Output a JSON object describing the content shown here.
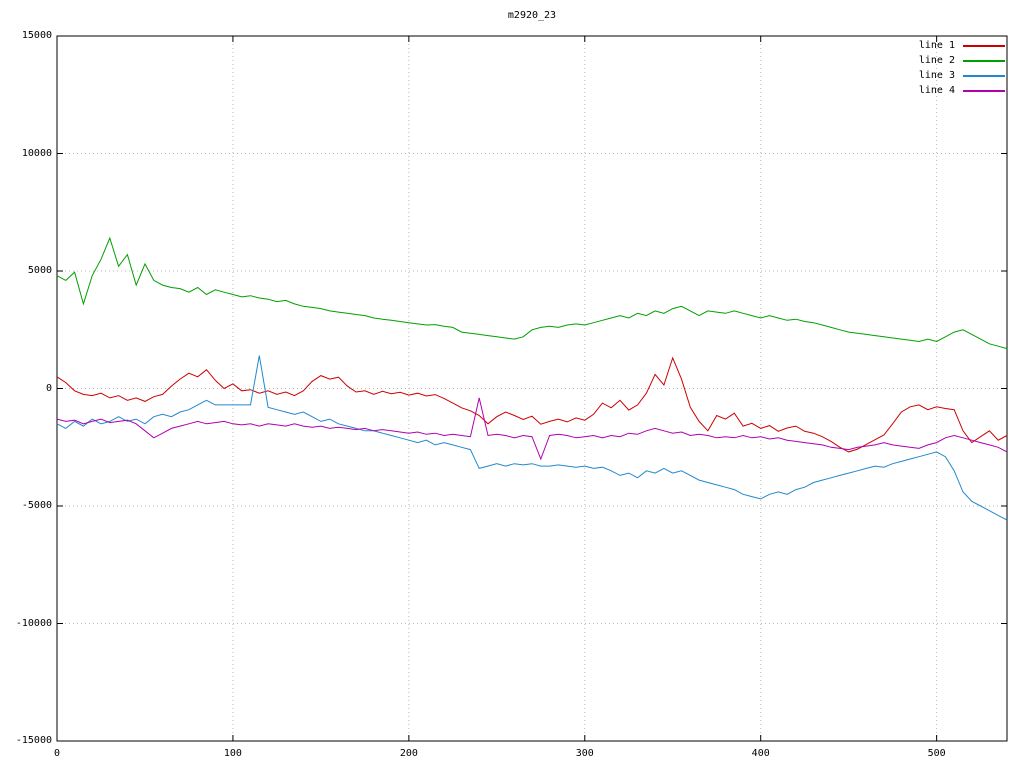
{
  "chart_data": {
    "type": "line",
    "title": "m2920_23",
    "xlabel": "",
    "ylabel": "",
    "xlim": [
      0,
      540
    ],
    "ylim": [
      -15000,
      15000
    ],
    "xticks": [
      0,
      100,
      200,
      300,
      400,
      500
    ],
    "yticks": [
      15000,
      10000,
      5000,
      0,
      -5000,
      -10000,
      -15000
    ],
    "xtick_labels": [
      "0",
      "100",
      "200",
      "300",
      "400",
      "500"
    ],
    "ytick_labels": [
      "15000",
      "10000",
      "5000",
      "0",
      "-5000",
      "-10000",
      "-15000"
    ],
    "grid": "dotted",
    "legend_position": "top-right",
    "x_start": 0,
    "x_step": 5,
    "series": [
      {
        "name": "line 1",
        "color": "#cc0000",
        "values": [
          500,
          250,
          -100,
          -250,
          -300,
          -200,
          -400,
          -300,
          -500,
          -400,
          -550,
          -350,
          -250,
          100,
          400,
          650,
          500,
          800,
          350,
          0,
          200,
          -100,
          -50,
          -200,
          -100,
          -250,
          -150,
          -300,
          -100,
          300,
          550,
          400,
          480,
          100,
          -150,
          -100,
          -250,
          -120,
          -220,
          -160,
          -280,
          -200,
          -320,
          -260,
          -420,
          -620,
          -820,
          -950,
          -1150,
          -1500,
          -1200,
          -1000,
          -1150,
          -1320,
          -1180,
          -1520,
          -1400,
          -1300,
          -1420,
          -1250,
          -1350,
          -1100,
          -620,
          -820,
          -500,
          -920,
          -700,
          -200,
          600,
          150,
          1300,
          400,
          -800,
          -1400,
          -1800,
          -1150,
          -1300,
          -1050,
          -1600,
          -1480,
          -1700,
          -1580,
          -1820,
          -1680,
          -1600,
          -1820,
          -1900,
          -2050,
          -2250,
          -2500,
          -2700,
          -2580,
          -2380,
          -2180,
          -1980,
          -1500,
          -1000,
          -780,
          -700,
          -900,
          -780,
          -850,
          -900,
          -1800,
          -2300,
          -2050,
          -1800,
          -2200,
          -2000
        ]
      },
      {
        "name": "line 2",
        "color": "#00a000",
        "values": [
          4800,
          4600,
          4950,
          3600,
          4800,
          5500,
          6400,
          5200,
          5700,
          4400,
          5300,
          4600,
          4400,
          4300,
          4250,
          4100,
          4300,
          4000,
          4200,
          4100,
          4000,
          3900,
          3950,
          3850,
          3800,
          3700,
          3750,
          3600,
          3500,
          3450,
          3400,
          3300,
          3250,
          3200,
          3150,
          3100,
          3000,
          2950,
          2900,
          2850,
          2800,
          2750,
          2700,
          2720,
          2650,
          2600,
          2400,
          2350,
          2300,
          2250,
          2200,
          2150,
          2100,
          2200,
          2500,
          2600,
          2650,
          2600,
          2700,
          2750,
          2700,
          2800,
          2900,
          3000,
          3100,
          3000,
          3200,
          3100,
          3300,
          3200,
          3400,
          3500,
          3300,
          3100,
          3300,
          3250,
          3200,
          3300,
          3200,
          3100,
          3000,
          3100,
          3000,
          2900,
          2950,
          2850,
          2800,
          2700,
          2600,
          2500,
          2400,
          2350,
          2300,
          2250,
          2200,
          2150,
          2100,
          2050,
          2000,
          2100,
          2000,
          2200,
          2400,
          2500,
          2300,
          2100,
          1900,
          1800,
          1700
        ]
      },
      {
        "name": "line 3",
        "color": "#2288cc",
        "values": [
          -1500,
          -1700,
          -1400,
          -1600,
          -1300,
          -1500,
          -1400,
          -1200,
          -1400,
          -1300,
          -1500,
          -1200,
          -1100,
          -1200,
          -1000,
          -900,
          -700,
          -500,
          -700,
          -700,
          -700,
          -700,
          -700,
          1400,
          -800,
          -900,
          -1000,
          -1100,
          -1000,
          -1200,
          -1400,
          -1300,
          -1500,
          -1600,
          -1700,
          -1800,
          -1800,
          -1900,
          -2000,
          -2100,
          -2200,
          -2300,
          -2200,
          -2400,
          -2300,
          -2400,
          -2500,
          -2600,
          -3400,
          -3300,
          -3200,
          -3300,
          -3200,
          -3250,
          -3200,
          -3300,
          -3300,
          -3250,
          -3300,
          -3350,
          -3300,
          -3400,
          -3350,
          -3500,
          -3700,
          -3600,
          -3800,
          -3500,
          -3600,
          -3400,
          -3600,
          -3500,
          -3700,
          -3900,
          -4000,
          -4100,
          -4200,
          -4300,
          -4500,
          -4600,
          -4700,
          -4500,
          -4400,
          -4500,
          -4300,
          -4200,
          -4000,
          -3900,
          -3800,
          -3700,
          -3600,
          -3500,
          -3400,
          -3300,
          -3350,
          -3200,
          -3100,
          -3000,
          -2900,
          -2800,
          -2700,
          -2900,
          -3500,
          -4400,
          -4800,
          -5000,
          -5200,
          -5400,
          -5600
        ]
      },
      {
        "name": "line 4",
        "color": "#b000b0",
        "values": [
          -1300,
          -1400,
          -1350,
          -1500,
          -1400,
          -1300,
          -1450,
          -1400,
          -1350,
          -1500,
          -1800,
          -2100,
          -1900,
          -1700,
          -1600,
          -1500,
          -1400,
          -1500,
          -1450,
          -1400,
          -1500,
          -1550,
          -1500,
          -1600,
          -1500,
          -1550,
          -1600,
          -1500,
          -1600,
          -1650,
          -1600,
          -1700,
          -1650,
          -1700,
          -1750,
          -1700,
          -1800,
          -1750,
          -1800,
          -1850,
          -1900,
          -1850,
          -1950,
          -1900,
          -2000,
          -1950,
          -2000,
          -2050,
          -400,
          -2000,
          -1950,
          -2000,
          -2100,
          -2000,
          -2050,
          -3000,
          -2000,
          -1950,
          -2000,
          -2100,
          -2050,
          -2000,
          -2100,
          -2000,
          -2050,
          -1900,
          -1950,
          -1800,
          -1700,
          -1800,
          -1900,
          -1850,
          -2000,
          -1950,
          -2000,
          -2100,
          -2050,
          -2100,
          -2000,
          -2100,
          -2050,
          -2150,
          -2100,
          -2200,
          -2250,
          -2300,
          -2350,
          -2400,
          -2500,
          -2550,
          -2600,
          -2500,
          -2450,
          -2400,
          -2300,
          -2400,
          -2450,
          -2500,
          -2550,
          -2400,
          -2300,
          -2100,
          -2000,
          -2100,
          -2200,
          -2300,
          -2400,
          -2500,
          -2700
        ]
      }
    ]
  }
}
